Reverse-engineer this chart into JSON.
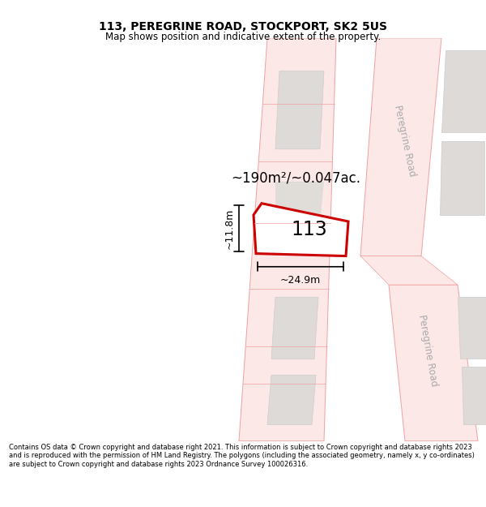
{
  "title": "113, PEREGRINE ROAD, STOCKPORT, SK2 5US",
  "subtitle": "Map shows position and indicative extent of the property.",
  "footer": "Contains OS data © Crown copyright and database right 2021. This information is subject to Crown copyright and database rights 2023 and is reproduced with the permission of HM Land Registry. The polygons (including the associated geometry, namely x, y co-ordinates) are subject to Crown copyright and database rights 2023 Ordnance Survey 100026316.",
  "area_label": "~190m²/~0.047ac.",
  "width_label": "~24.9m",
  "height_label": "~11.8m",
  "number_label": "113",
  "bg_color": "#ffffff",
  "road_fill": "#fde8e8",
  "road_edge": "#f0a0a0",
  "building_fill": "#dedad8",
  "building_edge": "#cccccc",
  "highlight_color": "#cc0000",
  "road_label_color": "#aaaaaa",
  "peregrine_road_label": "Peregrine Road",
  "title_fontsize": 10,
  "subtitle_fontsize": 8.5,
  "footer_fontsize": 6.0
}
